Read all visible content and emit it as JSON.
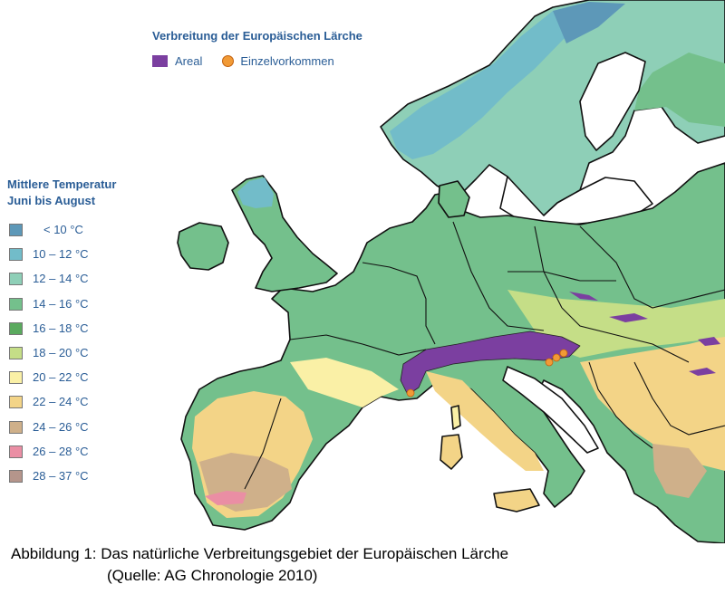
{
  "map": {
    "title": "Verbreitung der Europäischen Lärche",
    "legend_top": [
      {
        "label": "Areal",
        "color": "#7b3fa0",
        "shape": "square"
      },
      {
        "label": "Einzelvorkommen",
        "color": "#f19a36",
        "shape": "circle"
      }
    ],
    "temperature_legend": {
      "title_line1": "Mittlere Temperatur",
      "title_line2": "Juni bis August",
      "classes": [
        {
          "label": "< 10 °C",
          "color": "#5d98b8"
        },
        {
          "label": "10 – 12 °C",
          "color": "#72bcc9"
        },
        {
          "label": "12 – 14 °C",
          "color": "#8ecfb7"
        },
        {
          "label": "14 – 16 °C",
          "color": "#74c08c"
        },
        {
          "label": "16 – 18 °C",
          "color": "#5aaa5e"
        },
        {
          "label": "18 – 20 °C",
          "color": "#c5de87"
        },
        {
          "label": "20 – 22 °C",
          "color": "#faf0a6"
        },
        {
          "label": "22 – 24 °C",
          "color": "#f3d487"
        },
        {
          "label": "24 – 26 °C",
          "color": "#cfb08a"
        },
        {
          "label": "26 – 28 °C",
          "color": "#ea8ea4"
        },
        {
          "label": "28 – 37 °C",
          "color": "#b5958b"
        }
      ]
    },
    "caption_line1": "Abbildung 1: Das natürliche Verbreitungsgebiet der Europäischen Lärche",
    "caption_line2": "(Quelle: AG Chronologie 2010)"
  }
}
